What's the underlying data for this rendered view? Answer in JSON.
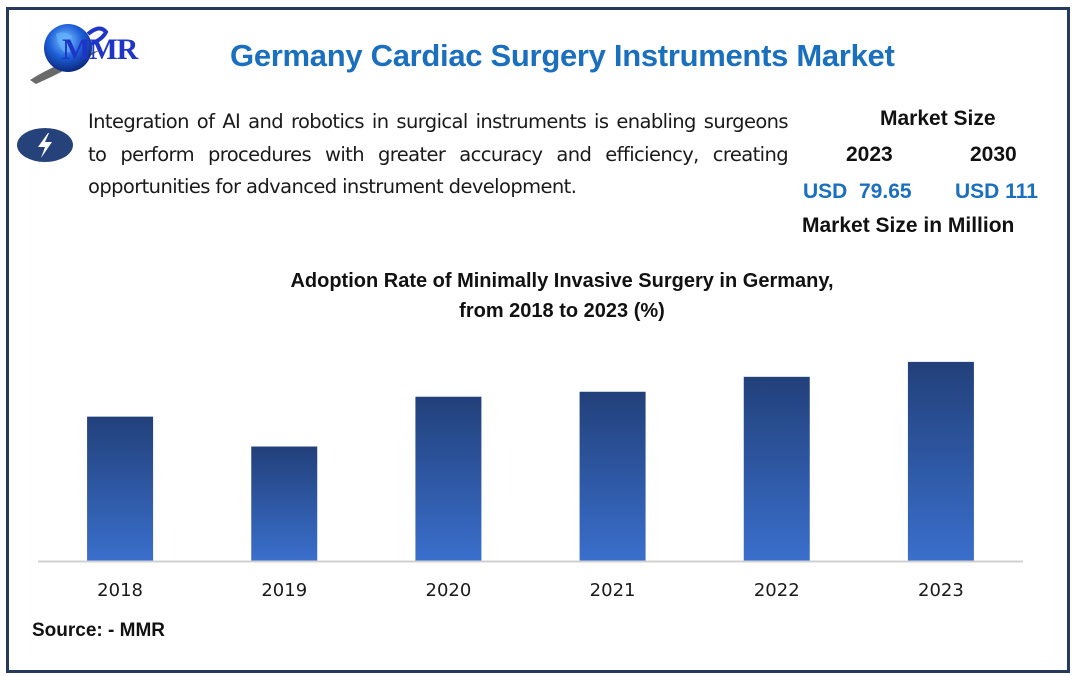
{
  "header": {
    "logo_text": "MMR",
    "title": "Germany Cardiac Surgery Instruments Market"
  },
  "insight": {
    "icon": "lightning-bolt-icon",
    "text": "Integration of AI and robotics in surgical instruments is enabling surgeons to perform procedures with greater accuracy and efficiency, creating opportunities for advanced instrument development."
  },
  "market_size": {
    "title": "Market Size",
    "year_start": "2023",
    "year_end": "2030",
    "value_start": "USD  79.65",
    "value_end": "USD 111",
    "unit_label": "Market Size in Million"
  },
  "colors": {
    "title_blue": "#1a6fbf",
    "frame_navy": "#263a5e",
    "badge_navy": "#25437a",
    "bar_top": "#22407a",
    "bar_bottom": "#3a6fcc",
    "axis_gray": "#d0d0d0"
  },
  "chart_data": {
    "type": "bar",
    "title": "Adoption Rate of Minimally Invasive Surgery in Germany,",
    "subtitle": "from 2018 to 2023 (%)",
    "categories": [
      "2018",
      "2019",
      "2020",
      "2021",
      "2022",
      "2023"
    ],
    "values": [
      29,
      23,
      33,
      34,
      37,
      40
    ],
    "xlabel": "",
    "ylabel": "",
    "ylim": [
      0,
      45
    ],
    "grid": false,
    "legend": "none",
    "y_axis_visible": false
  },
  "footer": {
    "source": "Source: - MMR"
  }
}
